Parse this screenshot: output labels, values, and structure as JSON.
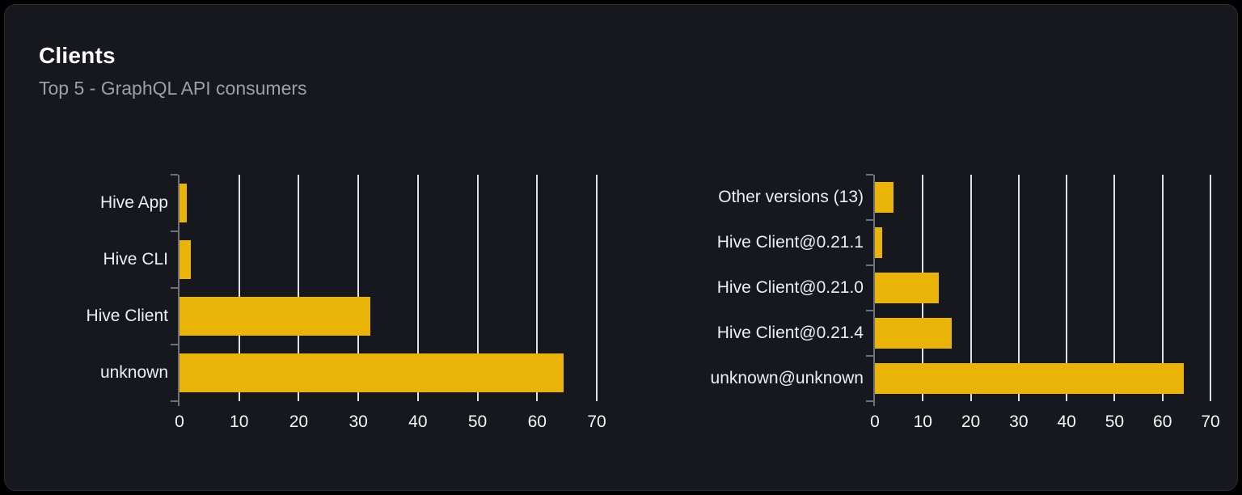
{
  "card": {
    "title": "Clients",
    "subtitle": "Top 5 - GraphQL API consumers"
  },
  "colors": {
    "background": "#000000",
    "card_background": "#16181e",
    "card_border": "#2b2e36",
    "title_text": "#ffffff",
    "subtitle_text": "#99a0a9",
    "label_text": "#eceef1",
    "tick_text": "#f5f6f8",
    "bar": "#eab308",
    "gridline": "#dde1e8",
    "axis": "#6f7177"
  },
  "chart_data": [
    {
      "type": "bar",
      "orientation": "horizontal",
      "name": "clients-by-name",
      "categories": [
        "Hive App",
        "Hive CLI",
        "Hive Client",
        "unknown"
      ],
      "values": [
        1.2,
        1.9,
        32,
        64.4
      ],
      "xlim": [
        0,
        70
      ],
      "xticks": [
        0,
        10,
        20,
        30,
        40,
        50,
        60,
        70
      ],
      "grid": true,
      "legend": false
    },
    {
      "type": "bar",
      "orientation": "horizontal",
      "name": "clients-by-version",
      "categories": [
        "Other versions (13)",
        "Hive Client@0.21.1",
        "Hive Client@0.21.0",
        "Hive Client@0.21.4",
        "unknown@unknown"
      ],
      "values": [
        3.8,
        1.5,
        13.4,
        16.1,
        64.4
      ],
      "xlim": [
        0,
        70
      ],
      "xticks": [
        0,
        10,
        20,
        30,
        40,
        50,
        60,
        70
      ],
      "grid": true,
      "legend": false
    }
  ]
}
